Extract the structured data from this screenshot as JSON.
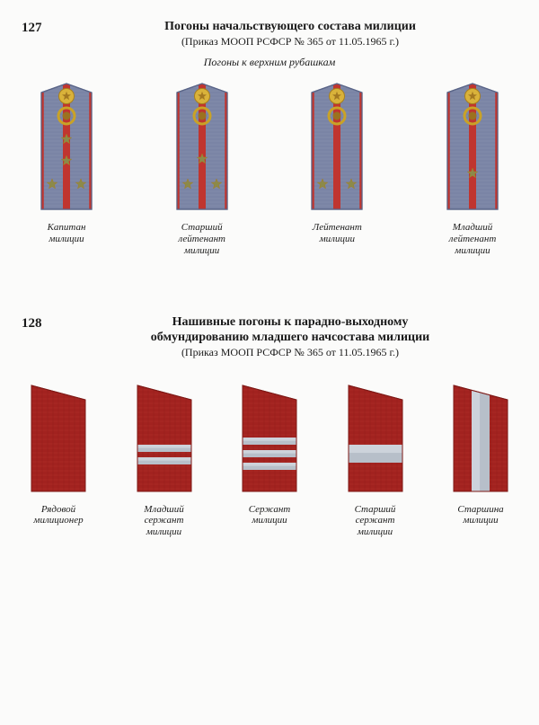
{
  "colors": {
    "page_bg": "#fbfbfa",
    "text": "#1a1a1a",
    "strap_base": "#7a84a5",
    "strap_light": "#9aa3c0",
    "strap_edge": "#5a6588",
    "piping_red": "#c0352f",
    "button_gold": "#d9b23a",
    "button_dark": "#a77f1e",
    "emblem_outer": "#c9a227",
    "emblem_inner": "#9c711f",
    "star_gold": "#d7b441",
    "star_olive": "#8b8a4a",
    "red_board": "#a2221f",
    "red_board_dark": "#7d1916",
    "red_board_hatch": "#c2423a",
    "silver_stripe": "#b7bfc9",
    "silver_stripe_light": "#d6dbe2"
  },
  "section1": {
    "plate": "127",
    "title": "Погоны начальствующего состава милиции",
    "subtitle": "(Приказ  МООП РСФСР № 365 от 11.05.1965 г.)",
    "caption": "Погоны к верхним рубашкам",
    "items": [
      {
        "label": "Капитан\nмилиции"
      },
      {
        "label": "Старший\nлейтенант\nмилиции"
      },
      {
        "label": "Лейтенант\nмилиции"
      },
      {
        "label": "Младший\nлейтенант\nмилиции"
      }
    ]
  },
  "section2": {
    "plate": "128",
    "title_line1": "Нашивные погоны к парадно-выходному",
    "title_line2": "обмундированию младшего начсостава милиции",
    "subtitle": "(Приказ  МООП РСФСР № 365 от 11.05.1965 г.)",
    "items": [
      {
        "label": "Рядовой\nмилиционер"
      },
      {
        "label": "Младший\nсержант\nмилиции"
      },
      {
        "label": "Сержант\nмилиции"
      },
      {
        "label": "Старший\nсержант\nмилиции"
      },
      {
        "label": "Старшина\nмилиции"
      }
    ]
  },
  "dims": {
    "strap_w": 60,
    "strap_h": 140,
    "board_w": 64,
    "board_h": 120
  }
}
